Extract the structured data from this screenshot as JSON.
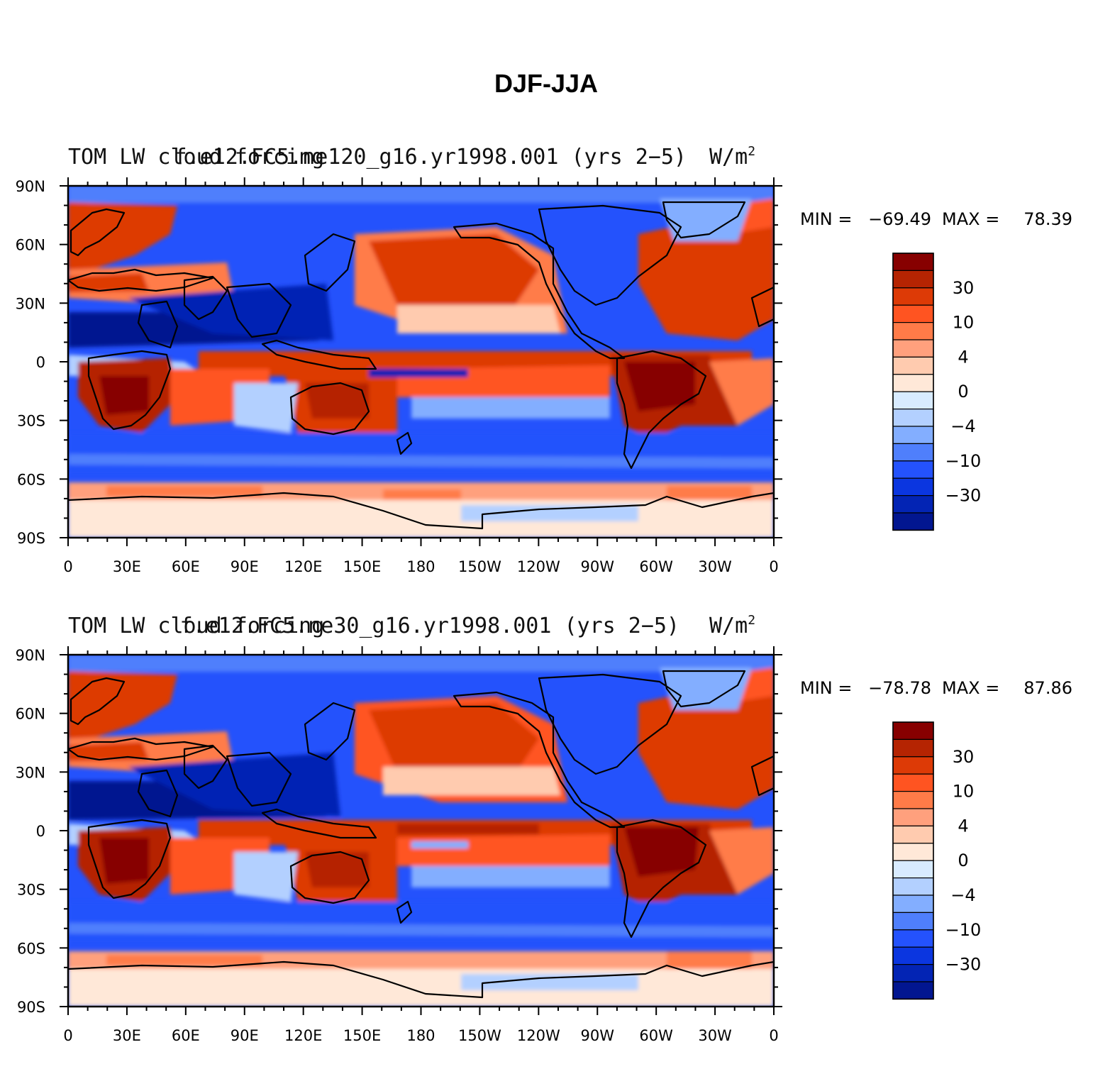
{
  "figure_title": "DJF-JJA",
  "units": "W/m",
  "units_superscript": "2",
  "x_ticks": [
    "0",
    "30E",
    "60E",
    "90E",
    "120E",
    "150E",
    "180",
    "150W",
    "120W",
    "90W",
    "60W",
    "30W",
    "0"
  ],
  "y_ticks": [
    "90N",
    "60N",
    "30N",
    "0",
    "30S",
    "60S",
    "90S"
  ],
  "colorbar": {
    "colors": [
      "#870000",
      "#b52402",
      "#dd3a06",
      "#ff5421",
      "#ff7b48",
      "#ffa07d",
      "#ffcbaf",
      "#ffe8d8",
      "#d8ebff",
      "#b3d0ff",
      "#83aeff",
      "#4f7ffc",
      "#2452fc",
      "#0b36e0",
      "#0324b4",
      "#021690"
    ],
    "labels": [
      "30",
      "10",
      "4",
      "0",
      "−4",
      "−10",
      "−30"
    ]
  },
  "panels": [
    {
      "left_title": "TOM LW cloud forcing",
      "case_name": "f.e12.FC5.ne120_g16.yr1998.001 (yrs 2−5)",
      "min_label": "MIN =",
      "min_value": "−69.49",
      "max_label": "MAX =",
      "max_value": "78.39"
    },
    {
      "left_title": "TOM LW cloud forcing",
      "case_name": "f.e12.FC5.ne30_g16.yr1998.001 (yrs 2−5)",
      "min_label": "MIN =",
      "min_value": "−78.78",
      "max_label": "MAX =",
      "max_value": "87.86"
    }
  ]
}
